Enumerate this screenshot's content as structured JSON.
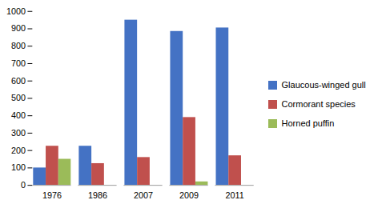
{
  "chart_data": {
    "type": "bar",
    "categories": [
      "1976",
      "1986",
      "2007",
      "2009",
      "2011"
    ],
    "series": [
      {
        "name": "Glaucous-winged gull",
        "color": "#4472C4",
        "values": [
          100,
          225,
          950,
          885,
          905
        ]
      },
      {
        "name": "Cormorant species",
        "color": "#C0504D",
        "values": [
          225,
          125,
          160,
          390,
          170
        ]
      },
      {
        "name": "Horned puffin",
        "color": "#9BBB59",
        "values": [
          150,
          0,
          0,
          20,
          0
        ]
      }
    ],
    "ylim": [
      0,
      1000
    ],
    "yticks": [
      0,
      100,
      200,
      300,
      400,
      500,
      600,
      700,
      800,
      900,
      1000
    ],
    "grid": false,
    "legend": "right"
  }
}
